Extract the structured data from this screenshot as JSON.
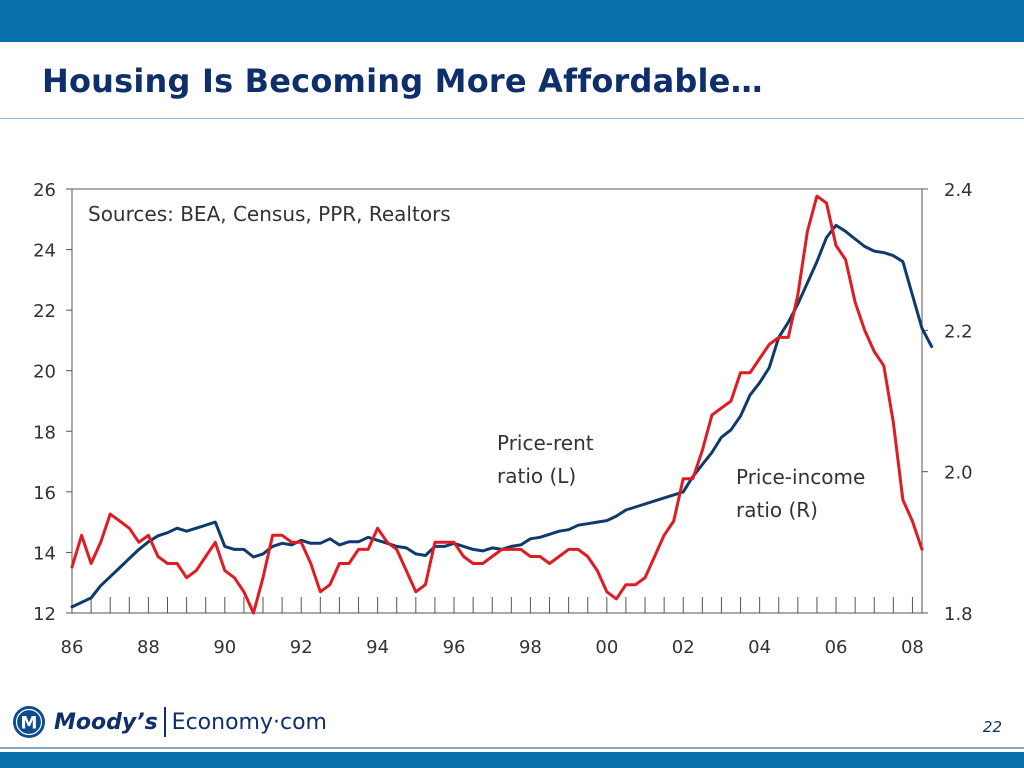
{
  "slide": {
    "title": "Housing Is Becoming More Affordable…",
    "page_number": "22",
    "brand_primary": "Moody’s",
    "brand_secondary": "Economy·com",
    "colors": {
      "bar": "#0a6fad",
      "title": "#0e2f6b",
      "rent_line": "#0e3a6e",
      "income_line": "#e01b22"
    }
  },
  "chart_data": {
    "type": "line",
    "title": "",
    "note": "Sources: BEA, Census, PPR, Realtors",
    "x_tick_labels": [
      "86",
      "88",
      "90",
      "92",
      "94",
      "96",
      "98",
      "00",
      "02",
      "04",
      "06",
      "08"
    ],
    "x_range": [
      1986,
      2008.25
    ],
    "y_left": {
      "range": [
        12,
        26
      ],
      "ticks": [
        12,
        14,
        16,
        18,
        20,
        22,
        24,
        26
      ]
    },
    "y_right": {
      "range": [
        1.8,
        2.4
      ],
      "ticks": [
        "1.8",
        "2.0",
        "2.2",
        "2.4"
      ]
    },
    "grid": false,
    "series": [
      {
        "name": "Price-rent ratio (L)",
        "axis": "left",
        "color": "#0e3a6e",
        "x_start": 1986,
        "step": 0.25,
        "values": [
          12.2,
          12.35,
          12.5,
          12.9,
          13.2,
          13.5,
          13.8,
          14.1,
          14.35,
          14.55,
          14.65,
          14.8,
          14.7,
          14.8,
          14.9,
          15.0,
          14.2,
          14.1,
          14.1,
          13.85,
          13.95,
          14.2,
          14.3,
          14.25,
          14.4,
          14.3,
          14.3,
          14.45,
          14.25,
          14.35,
          14.35,
          14.5,
          14.4,
          14.3,
          14.2,
          14.15,
          13.95,
          13.9,
          14.2,
          14.2,
          14.3,
          14.2,
          14.1,
          14.05,
          14.15,
          14.1,
          14.2,
          14.25,
          14.45,
          14.5,
          14.6,
          14.7,
          14.75,
          14.9,
          14.95,
          15.0,
          15.05,
          15.2,
          15.4,
          15.5,
          15.6,
          15.7,
          15.8,
          15.9,
          16.0,
          16.5,
          16.9,
          17.3,
          17.8,
          18.05,
          18.5,
          19.2,
          19.6,
          20.1,
          21.1,
          21.6,
          22.2,
          22.9,
          23.6,
          24.4,
          24.8,
          24.6,
          24.35,
          24.1,
          23.95,
          23.9,
          23.8,
          23.6,
          22.5,
          21.4,
          20.8
        ]
      },
      {
        "name": "Price-income ratio (R)",
        "axis": "right",
        "color": "#e01b22",
        "x_start": 1986,
        "step": 0.25,
        "values": [
          1.865,
          1.91,
          1.87,
          1.9,
          1.94,
          1.93,
          1.92,
          1.9,
          1.91,
          1.88,
          1.87,
          1.87,
          1.85,
          1.86,
          1.88,
          1.9,
          1.86,
          1.85,
          1.83,
          1.8,
          1.85,
          1.91,
          1.91,
          1.9,
          1.9,
          1.87,
          1.83,
          1.84,
          1.87,
          1.87,
          1.89,
          1.89,
          1.92,
          1.9,
          1.89,
          1.86,
          1.83,
          1.84,
          1.9,
          1.9,
          1.9,
          1.88,
          1.87,
          1.87,
          1.88,
          1.89,
          1.89,
          1.89,
          1.88,
          1.88,
          1.87,
          1.88,
          1.89,
          1.89,
          1.88,
          1.86,
          1.83,
          1.82,
          1.84,
          1.84,
          1.85,
          1.88,
          1.91,
          1.93,
          1.99,
          1.99,
          2.03,
          2.08,
          2.09,
          2.1,
          2.14,
          2.14,
          2.16,
          2.18,
          2.19,
          2.19,
          2.25,
          2.34,
          2.39,
          2.38,
          2.32,
          2.3,
          2.24,
          2.2,
          2.17,
          2.15,
          2.07,
          1.96,
          1.93,
          1.89
        ]
      }
    ],
    "annotations": [
      {
        "lines": [
          "Price-rent",
          "ratio (L)"
        ]
      },
      {
        "lines": [
          "Price-income",
          "ratio (R)"
        ]
      }
    ]
  }
}
